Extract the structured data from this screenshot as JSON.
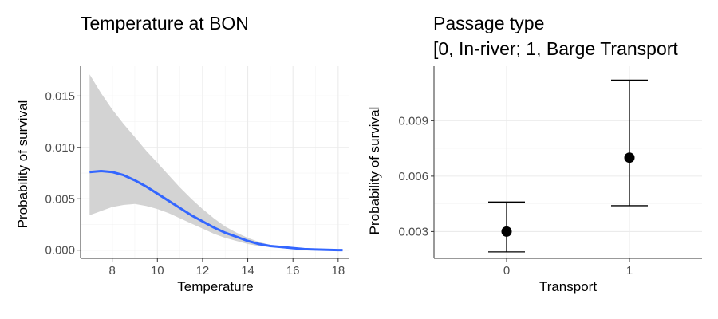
{
  "chart_data": [
    {
      "type": "line",
      "title": "Temperature at BON",
      "xlabel": "Temperature",
      "ylabel": "Probability of survival",
      "xlim": [
        6.6,
        18.5
      ],
      "ylim": [
        -0.0008,
        0.0179
      ],
      "x_ticks": [
        8,
        10,
        12,
        14,
        16,
        18
      ],
      "x_tick_labels": [
        "8",
        "10",
        "12",
        "14",
        "16",
        "18"
      ],
      "y_ticks": [
        0,
        0.005,
        0.01,
        0.015
      ],
      "y_tick_labels": [
        "0.000",
        "0.005",
        "0.010",
        "0.015"
      ],
      "grid": true,
      "line_color": "#3366FF",
      "ribbon_color": "#D3D3D3",
      "series": [
        {
          "x": [
            7.0,
            7.5,
            8.0,
            8.5,
            9.0,
            9.5,
            10.0,
            10.5,
            11.0,
            11.5,
            12.0,
            12.5,
            13.0,
            13.5,
            14.0,
            14.5,
            15.0,
            15.5,
            16.0,
            16.5,
            17.0,
            17.5,
            18.0,
            18.2
          ],
          "y": [
            0.0076,
            0.0077,
            0.0076,
            0.0073,
            0.0068,
            0.0062,
            0.0055,
            0.0048,
            0.0041,
            0.0034,
            0.0028,
            0.0022,
            0.0017,
            0.0013,
            0.0009,
            0.0006,
            0.0004,
            0.0003,
            0.0002,
            0.0001,
            6e-05,
            3e-05,
            1e-05,
            1e-05
          ],
          "lower": [
            0.0034,
            0.0038,
            0.0042,
            0.0044,
            0.0045,
            0.0043,
            0.004,
            0.0036,
            0.0031,
            0.0026,
            0.0021,
            0.0016,
            0.0012,
            0.0009,
            0.0006,
            0.0004,
            0.0003,
            0.0002,
            0.0001,
            6e-05,
            3e-05,
            1e-05,
            0.0,
            0.0
          ],
          "upper": [
            0.0171,
            0.0153,
            0.0137,
            0.0123,
            0.011,
            0.0097,
            0.0085,
            0.0073,
            0.0061,
            0.005,
            0.004,
            0.0031,
            0.0023,
            0.0017,
            0.0012,
            0.0008,
            0.0005,
            0.0003,
            0.0002,
            0.0001,
            7e-05,
            4e-05,
            2e-05,
            2e-05
          ]
        }
      ]
    },
    {
      "type": "scatter",
      "title": "Passage type",
      "subtitle": "[0, In-river; 1, Barge Transport",
      "xlabel": "Transport",
      "ylabel": "Probability of survival",
      "categories": [
        "0",
        "1"
      ],
      "ylim": [
        0.00155,
        0.01195
      ],
      "y_ticks": [
        0.003,
        0.006,
        0.009
      ],
      "y_tick_labels": [
        "0.003",
        "0.006",
        "0.009"
      ],
      "grid": true,
      "point_color": "#000000",
      "series": [
        {
          "values": [
            0.003,
            0.007
          ],
          "lower": [
            0.0019,
            0.0044
          ],
          "upper": [
            0.0046,
            0.0112
          ]
        }
      ]
    }
  ]
}
